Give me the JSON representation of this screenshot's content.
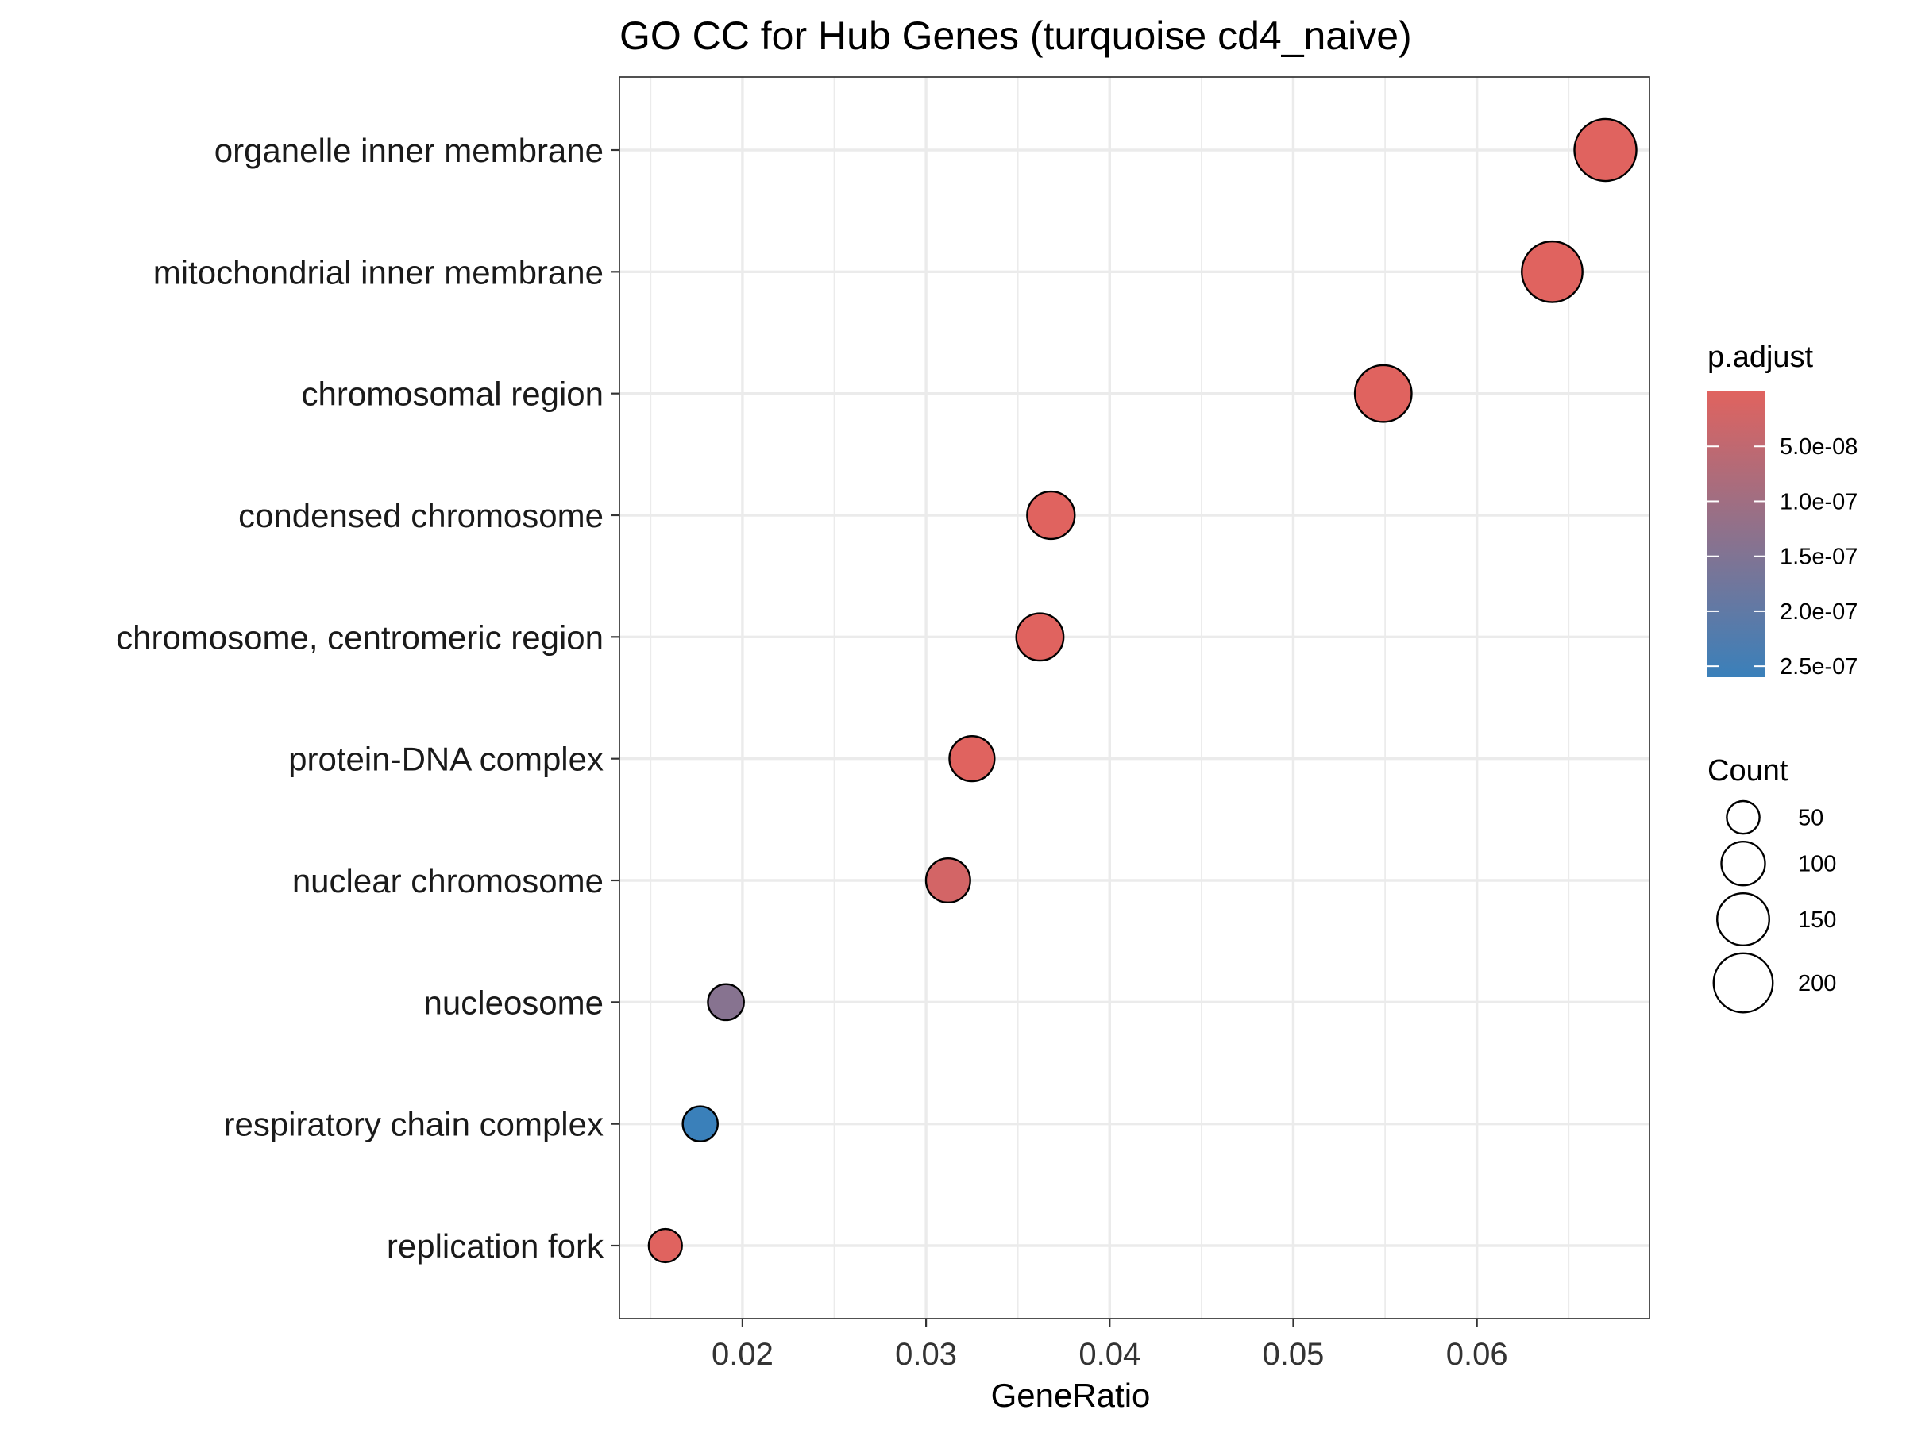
{
  "chart_data": {
    "type": "scatter",
    "title": "GO CC for Hub Genes (turquoise cd4_naive)",
    "xlabel": "GeneRatio",
    "ylabel": "",
    "xlim": [
      0.0133,
      0.0694
    ],
    "xticks": [
      "0.02",
      "0.03",
      "0.04",
      "0.05",
      "0.06"
    ],
    "xtick_values": [
      0.02,
      0.03,
      0.04,
      0.05,
      0.06
    ],
    "grid": true,
    "categories": [
      "organelle inner membrane",
      "mitochondrial inner membrane",
      "chromosomal region",
      "condensed chromosome",
      "chromosome, centromeric region",
      "protein-DNA complex",
      "nuclear chromosome",
      "nucleosome",
      "respiratory chain complex",
      "replication fork"
    ],
    "points": [
      {
        "term": "organelle inner membrane",
        "gene_ratio": 0.067,
        "count": 222,
        "p_adjust": 5e-10
      },
      {
        "term": "mitochondrial inner membrane",
        "gene_ratio": 0.0641,
        "count": 212,
        "p_adjust": 5e-10
      },
      {
        "term": "chromosomal region",
        "gene_ratio": 0.0549,
        "count": 182,
        "p_adjust": 5e-10
      },
      {
        "term": "condensed chromosome",
        "gene_ratio": 0.0368,
        "count": 122,
        "p_adjust": 5e-10
      },
      {
        "term": "chromosome, centromeric region",
        "gene_ratio": 0.0362,
        "count": 120,
        "p_adjust": 5e-10
      },
      {
        "term": "protein-DNA complex",
        "gene_ratio": 0.0325,
        "count": 108,
        "p_adjust": 5e-10
      },
      {
        "term": "nuclear chromosome",
        "gene_ratio": 0.0312,
        "count": 103,
        "p_adjust": 2e-08
      },
      {
        "term": "nucleosome",
        "gene_ratio": 0.0191,
        "count": 63,
        "p_adjust": 1.4e-07
      },
      {
        "term": "respiratory chain complex",
        "gene_ratio": 0.0177,
        "count": 59,
        "p_adjust": 2.6e-07
      },
      {
        "term": "replication fork",
        "gene_ratio": 0.0158,
        "count": 52,
        "p_adjust": 5e-10
      }
    ],
    "color_legend": {
      "title": "p.adjust",
      "range": [
        0,
        2.6e-07
      ],
      "low_color": "#e0635f",
      "high_color": "#3a80ba",
      "tick_labels": [
        "5.0e-08",
        "1.0e-07",
        "1.5e-07",
        "2.0e-07",
        "2.5e-07"
      ],
      "tick_values": [
        5e-08,
        1e-07,
        1.5e-07,
        2e-07,
        2.5e-07
      ]
    },
    "size_legend": {
      "title": "Count",
      "labels": [
        "50",
        "100",
        "150",
        "200"
      ],
      "values": [
        50,
        100,
        150,
        200
      ]
    },
    "legend_position": "right"
  }
}
